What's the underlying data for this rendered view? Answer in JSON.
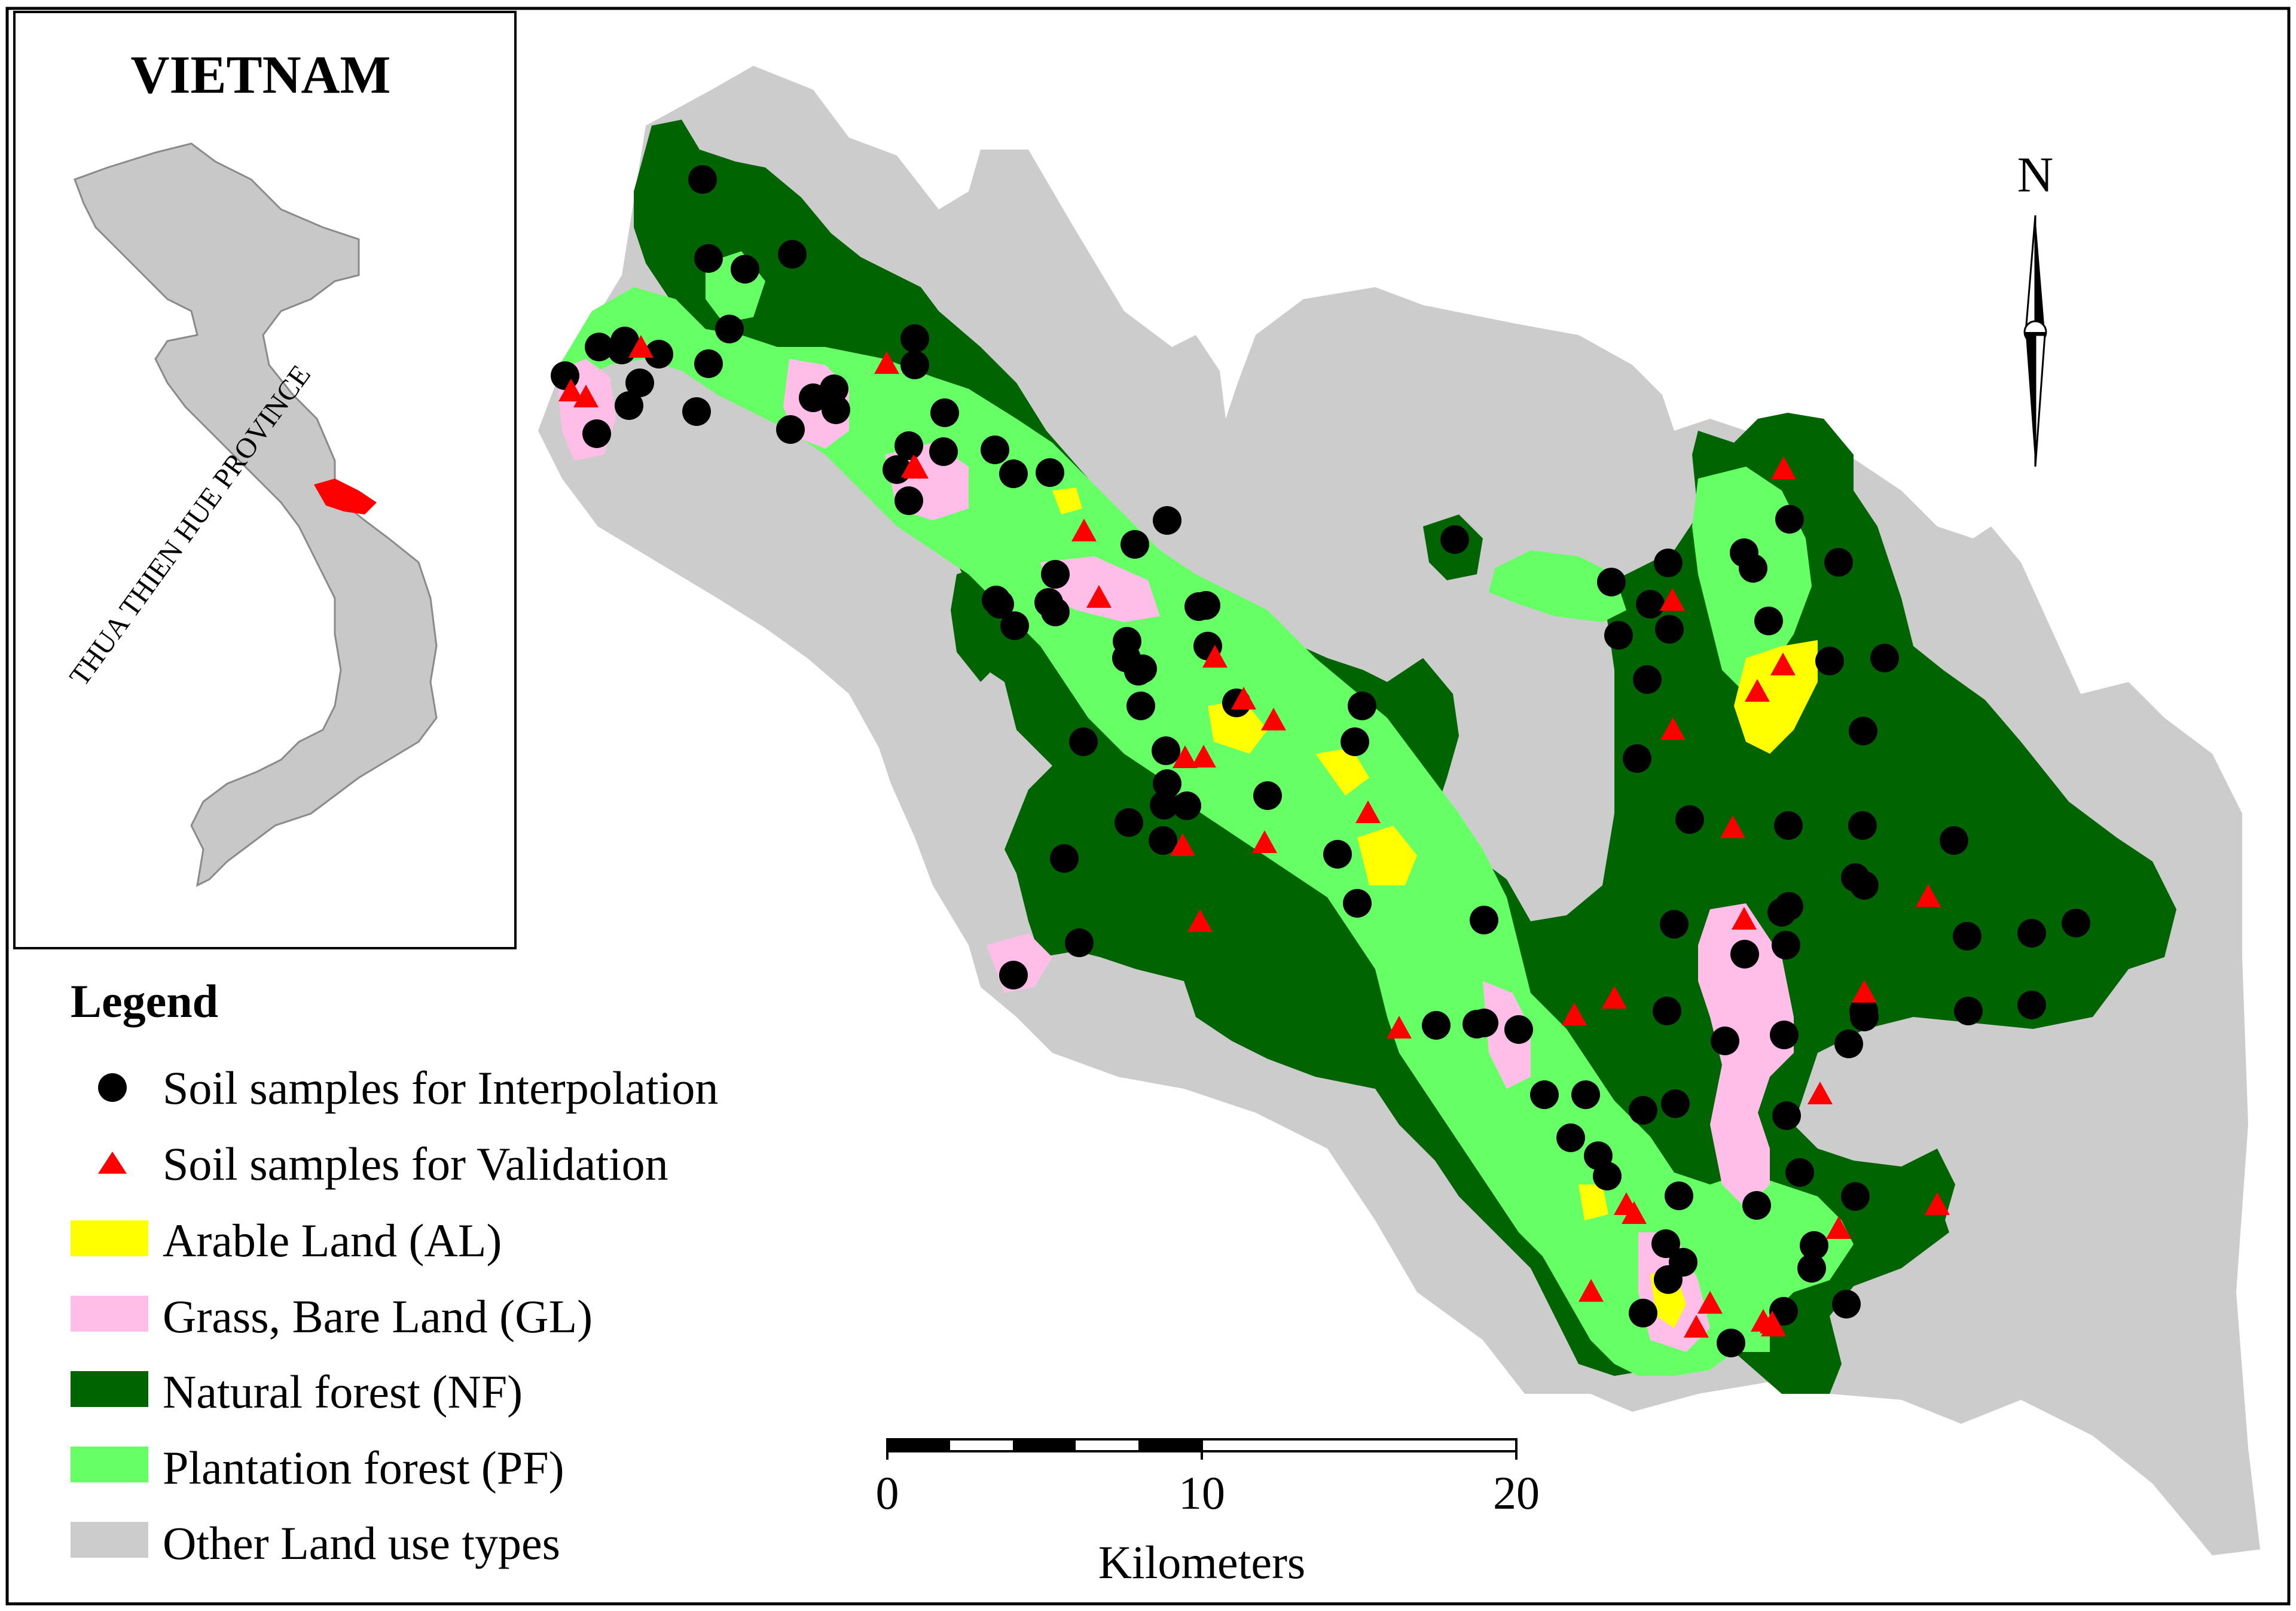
{
  "inset": {
    "country_label": "VIETNAM",
    "province_label": "THUA THIEN HUE PROVINCE"
  },
  "north_arrow": {
    "label": "N"
  },
  "legend": {
    "title": "Legend",
    "items": [
      {
        "label": "Soil samples for Interpolation",
        "symbol": "circle",
        "color": "#000000"
      },
      {
        "label": "Soil samples for Validation",
        "symbol": "triangle",
        "color": "#ff0000"
      },
      {
        "label": "Arable Land (AL)",
        "symbol": "rect",
        "color": "#ffff00"
      },
      {
        "label": "Grass, Bare Land (GL)",
        "symbol": "rect",
        "color": "#ffbee8"
      },
      {
        "label": "Natural forest (NF)",
        "symbol": "rect",
        "color": "#006400"
      },
      {
        "label": "Plantation forest (PF)",
        "symbol": "rect",
        "color": "#66ff66"
      },
      {
        "label": "Other Land use types",
        "symbol": "rect",
        "color": "#cccccc"
      }
    ]
  },
  "scale_bar": {
    "ticks": [
      "0",
      "10",
      "20"
    ],
    "unit": "Kilometers"
  },
  "colors": {
    "other": "#cccccc",
    "natural_forest": "#006400",
    "plantation_forest": "#66ff66",
    "arable": "#ffff00",
    "grass": "#ffbee8",
    "inset_country": "#c8c8c8",
    "inset_province": "#ff0000",
    "interpolation": "#000000",
    "validation": "#ff0000"
  }
}
